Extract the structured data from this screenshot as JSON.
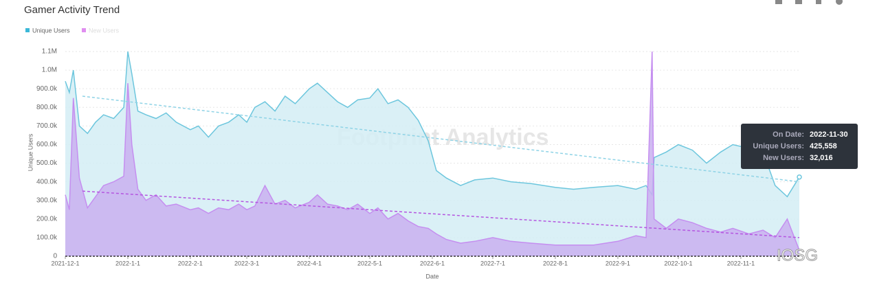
{
  "chart_data": {
    "type": "area",
    "title": "Gamer Activity Trend",
    "x_label": "Date",
    "y_label": "Unique Users",
    "x": [
      "2021-12-01",
      "2021-12-03",
      "2021-12-05",
      "2021-12-08",
      "2021-12-12",
      "2021-12-16",
      "2021-12-20",
      "2021-12-25",
      "2021-12-30",
      "2022-01-01",
      "2022-01-03",
      "2022-01-06",
      "2022-01-10",
      "2022-01-15",
      "2022-01-20",
      "2022-01-25",
      "2022-02-01",
      "2022-02-05",
      "2022-02-10",
      "2022-02-15",
      "2022-02-20",
      "2022-02-25",
      "2022-03-01",
      "2022-03-05",
      "2022-03-10",
      "2022-03-15",
      "2022-03-20",
      "2022-03-25",
      "2022-04-01",
      "2022-04-05",
      "2022-04-10",
      "2022-04-15",
      "2022-04-20",
      "2022-04-25",
      "2022-05-01",
      "2022-05-05",
      "2022-05-10",
      "2022-05-15",
      "2022-05-20",
      "2022-05-25",
      "2022-05-30",
      "2022-06-03",
      "2022-06-08",
      "2022-06-15",
      "2022-06-22",
      "2022-07-01",
      "2022-07-10",
      "2022-07-20",
      "2022-08-01",
      "2022-08-10",
      "2022-08-20",
      "2022-09-01",
      "2022-09-10",
      "2022-09-15",
      "2022-09-18",
      "2022-09-19",
      "2022-09-25",
      "2022-10-01",
      "2022-10-08",
      "2022-10-15",
      "2022-10-22",
      "2022-10-28",
      "2022-11-05",
      "2022-11-12",
      "2022-11-18",
      "2022-11-24",
      "2022-11-30"
    ],
    "series": [
      {
        "name": "Unique Users",
        "color": "#3bb8d8",
        "line_color": "#6cc6dd",
        "fill": "#d3edf5",
        "values": [
          940000,
          880000,
          1000000,
          700000,
          660000,
          720000,
          760000,
          740000,
          800000,
          1100000,
          980000,
          780000,
          760000,
          740000,
          770000,
          720000,
          680000,
          700000,
          640000,
          700000,
          720000,
          760000,
          720000,
          800000,
          830000,
          780000,
          860000,
          820000,
          900000,
          930000,
          880000,
          830000,
          800000,
          840000,
          850000,
          900000,
          820000,
          840000,
          800000,
          730000,
          620000,
          460000,
          420000,
          380000,
          410000,
          420000,
          400000,
          390000,
          370000,
          360000,
          370000,
          380000,
          360000,
          380000,
          330000,
          530000,
          560000,
          600000,
          570000,
          500000,
          560000,
          600000,
          580000,
          560000,
          380000,
          320000,
          425558
        ],
        "trend": [
          860000,
          400000
        ]
      },
      {
        "name": "New Users",
        "color": "#e08ef0",
        "line_color": "#c58ef0",
        "fill": "#c9b0f0",
        "values": [
          330000,
          250000,
          850000,
          420000,
          260000,
          320000,
          380000,
          400000,
          430000,
          930000,
          600000,
          360000,
          300000,
          330000,
          270000,
          280000,
          250000,
          260000,
          230000,
          260000,
          250000,
          280000,
          250000,
          270000,
          380000,
          280000,
          300000,
          260000,
          290000,
          330000,
          280000,
          270000,
          250000,
          280000,
          230000,
          260000,
          200000,
          230000,
          190000,
          160000,
          150000,
          120000,
          90000,
          70000,
          80000,
          100000,
          80000,
          70000,
          60000,
          60000,
          60000,
          80000,
          110000,
          100000,
          1100000,
          200000,
          150000,
          200000,
          180000,
          150000,
          130000,
          150000,
          120000,
          140000,
          100000,
          200000,
          32016
        ],
        "trend": [
          350000,
          100000
        ]
      }
    ],
    "xlim": [
      "2021-12-01",
      "2022-11-30"
    ],
    "xticks": [
      {
        "value": "2021-12-01",
        "label": "2021-12-1"
      },
      {
        "value": "2022-01-01",
        "label": "2022-1-1"
      },
      {
        "value": "2022-02-01",
        "label": "2022-2-1"
      },
      {
        "value": "2022-03-01",
        "label": "2022-3-1"
      },
      {
        "value": "2022-04-01",
        "label": "2022-4-1"
      },
      {
        "value": "2022-05-01",
        "label": "2022-5-1"
      },
      {
        "value": "2022-06-01",
        "label": "2022-6-1"
      },
      {
        "value": "2022-07-01",
        "label": "2022-7-1"
      },
      {
        "value": "2022-08-01",
        "label": "2022-8-1"
      },
      {
        "value": "2022-09-01",
        "label": "2022-9-1"
      },
      {
        "value": "2022-10-01",
        "label": "2022-10-1"
      },
      {
        "value": "2022-11-01",
        "label": "2022-11-1"
      }
    ],
    "ylim": [
      0,
      1100000
    ],
    "yticks": [
      0,
      {
        "value": 100000,
        "label": "100.0k"
      },
      {
        "value": 200000,
        "label": "200.0k"
      },
      {
        "value": 300000,
        "label": "300.0k"
      },
      {
        "value": 400000,
        "label": "400.0k"
      },
      {
        "value": 500000,
        "label": "500.0k"
      },
      {
        "value": 600000,
        "label": "600.0k"
      },
      {
        "value": 700000,
        "label": "700.0k"
      },
      {
        "value": 800000,
        "label": "800.0k"
      },
      {
        "value": 900000,
        "label": "900.0k"
      },
      {
        "value": 1000000,
        "label": "1.0M"
      },
      {
        "value": 1100000,
        "label": "1.1M"
      }
    ],
    "grid": true,
    "tooltip": {
      "labels": [
        "On Date:",
        "Unique Users:",
        "New Users:"
      ],
      "values": [
        "2022-11-30",
        "425,558",
        "32,016"
      ]
    },
    "watermarks": [
      "Footprint Analytics",
      "IOSG"
    ]
  }
}
